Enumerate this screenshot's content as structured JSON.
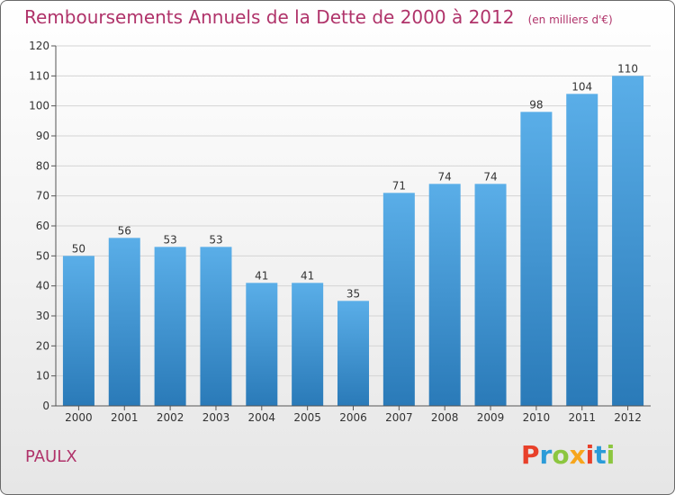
{
  "header": {
    "title": "Remboursements Annuels de la Dette de 2000 à 2012",
    "unit": "(en milliers d'€)"
  },
  "footer": {
    "commune": "PAULX",
    "logo_text": "Proxiti",
    "logo_colors": [
      "#e8402a",
      "#2b9bd8",
      "#8cc63f",
      "#f7a51c",
      "#e8402a",
      "#2b9bd8",
      "#8cc63f"
    ]
  },
  "chart_data": {
    "type": "bar",
    "title": "Remboursements Annuels de la Dette de 2000 à 2012",
    "xlabel": "",
    "ylabel": "",
    "categories": [
      "2000",
      "2001",
      "2002",
      "2003",
      "2004",
      "2005",
      "2006",
      "2007",
      "2008",
      "2009",
      "2010",
      "2011",
      "2012"
    ],
    "values": [
      50,
      56,
      53,
      53,
      41,
      41,
      35,
      71,
      74,
      74,
      98,
      104,
      110
    ],
    "ylim": [
      0,
      120
    ],
    "yticks": [
      0,
      10,
      20,
      30,
      40,
      50,
      60,
      70,
      80,
      90,
      100,
      110,
      120
    ],
    "grid": "horizontal",
    "bar_color_top": "#5aaee8",
    "bar_color_bottom": "#2a7ab8"
  }
}
